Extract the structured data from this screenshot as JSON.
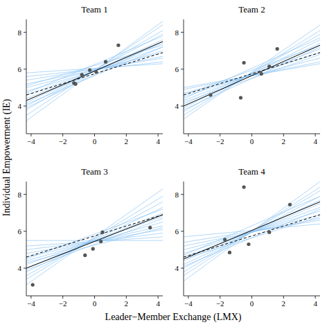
{
  "chart_data": [
    {
      "type": "line",
      "title": "Team 1",
      "x_label": "Leader−Member Exchange (LMX)",
      "y_label": "Individual Empowerment (IE)",
      "xlim": [
        -4.3,
        4.3
      ],
      "ylim": [
        2.5,
        8.7
      ],
      "xticks": [
        -4,
        -2,
        0,
        2,
        4
      ],
      "yticks": [
        4,
        6,
        8
      ],
      "x": [
        -4.3,
        4.3
      ],
      "series": [
        {
          "color": "#8fc6f5",
          "values": [
            3.2,
            8.6
          ]
        },
        {
          "color": "#8fc6f5",
          "values": [
            3.5,
            8.4
          ]
        },
        {
          "color": "#8fc6f5",
          "values": [
            3.8,
            8.1
          ]
        },
        {
          "color": "#8fc6f5",
          "values": [
            4.0,
            7.9
          ]
        },
        {
          "color": "#8fc6f5",
          "values": [
            4.2,
            7.6
          ]
        },
        {
          "color": "#8fc6f5",
          "values": [
            4.4,
            7.4
          ]
        },
        {
          "color": "#8fc6f5",
          "values": [
            4.6,
            7.2
          ]
        },
        {
          "color": "#8fc6f5",
          "values": [
            4.8,
            7.0
          ]
        },
        {
          "color": "#8fc6f5",
          "values": [
            5.0,
            6.9
          ]
        },
        {
          "color": "#8fc6f5",
          "values": [
            5.2,
            6.7
          ]
        },
        {
          "color": "#8fc6f5",
          "values": [
            5.4,
            6.6
          ]
        },
        {
          "color": "#8fc6f5",
          "values": [
            5.6,
            6.4
          ]
        },
        {
          "color": "#8fc6f5",
          "values": [
            5.8,
            6.3
          ]
        },
        {
          "color": "#8fc6f5",
          "values": [
            4.1,
            7.2
          ]
        },
        {
          "color": "#8fc6f5",
          "values": [
            4.7,
            7.8
          ]
        },
        {
          "color": "#8fc6f5",
          "values": [
            3.9,
            7.5
          ]
        },
        {
          "color": "#8fc6f5",
          "values": [
            5.1,
            7.3
          ]
        },
        {
          "color": "#000000",
          "line_style": "solid",
          "values": [
            4.3,
            7.5
          ]
        },
        {
          "color": "#000000",
          "line_style": "dashed",
          "values": [
            4.6,
            6.9
          ]
        },
        {
          "type": "scatter",
          "marker": "circle",
          "color": "#555555",
          "x": [
            -1.3,
            -1.2,
            -0.8,
            -0.3,
            0.1,
            0.7,
            1.5
          ],
          "values": [
            5.25,
            5.2,
            5.7,
            5.95,
            5.85,
            6.4,
            7.3
          ]
        }
      ]
    },
    {
      "type": "line",
      "title": "Team 2",
      "xlim": [
        -4.3,
        4.3
      ],
      "ylim": [
        2.5,
        8.7
      ],
      "xticks": [
        -4,
        -2,
        0,
        2,
        4
      ],
      "yticks": [
        4,
        6,
        8
      ],
      "x": [
        -4.3,
        4.3
      ],
      "series": [
        {
          "color": "#8fc6f5",
          "values": [
            3.3,
            8.4
          ]
        },
        {
          "color": "#8fc6f5",
          "values": [
            3.5,
            8.1
          ]
        },
        {
          "color": "#8fc6f5",
          "values": [
            3.7,
            7.9
          ]
        },
        {
          "color": "#8fc6f5",
          "values": [
            3.9,
            7.6
          ]
        },
        {
          "color": "#8fc6f5",
          "values": [
            4.1,
            7.4
          ]
        },
        {
          "color": "#8fc6f5",
          "values": [
            4.3,
            7.1
          ]
        },
        {
          "color": "#8fc6f5",
          "values": [
            4.5,
            6.9
          ]
        },
        {
          "color": "#8fc6f5",
          "values": [
            4.7,
            6.6
          ]
        },
        {
          "color": "#8fc6f5",
          "values": [
            4.9,
            6.4
          ]
        },
        {
          "color": "#8fc6f5",
          "values": [
            5.0,
            6.3
          ]
        },
        {
          "color": "#8fc6f5",
          "values": [
            3.8,
            7.2
          ]
        },
        {
          "color": "#8fc6f5",
          "values": [
            4.4,
            7.7
          ]
        },
        {
          "color": "#8fc6f5",
          "values": [
            4.2,
            6.8
          ]
        },
        {
          "color": "#8fc6f5",
          "values": [
            4.6,
            7.3
          ]
        },
        {
          "color": "#000000",
          "line_style": "solid",
          "values": [
            4.0,
            7.3
          ]
        },
        {
          "color": "#000000",
          "line_style": "dashed",
          "values": [
            4.6,
            6.9
          ]
        },
        {
          "type": "scatter",
          "marker": "circle",
          "color": "#555555",
          "x": [
            -2.6,
            -0.7,
            -0.5,
            0.6,
            1.1,
            1.6
          ],
          "values": [
            4.6,
            4.45,
            6.35,
            5.75,
            6.15,
            7.1
          ]
        }
      ]
    },
    {
      "type": "line",
      "title": "Team 3",
      "xlim": [
        -4.3,
        4.3
      ],
      "ylim": [
        2.5,
        8.7
      ],
      "xticks": [
        -4,
        -2,
        0,
        2,
        4
      ],
      "yticks": [
        4,
        6,
        8
      ],
      "x": [
        -4.3,
        4.3
      ],
      "series": [
        {
          "color": "#8fc6f5",
          "values": [
            3.1,
            8.3
          ]
        },
        {
          "color": "#8fc6f5",
          "values": [
            3.4,
            7.9
          ]
        },
        {
          "color": "#8fc6f5",
          "values": [
            3.6,
            7.6
          ]
        },
        {
          "color": "#8fc6f5",
          "values": [
            3.8,
            7.3
          ]
        },
        {
          "color": "#8fc6f5",
          "values": [
            4.0,
            7.0
          ]
        },
        {
          "color": "#8fc6f5",
          "values": [
            4.2,
            6.8
          ]
        },
        {
          "color": "#8fc6f5",
          "values": [
            4.4,
            6.5
          ]
        },
        {
          "color": "#8fc6f5",
          "values": [
            4.6,
            6.3
          ]
        },
        {
          "color": "#8fc6f5",
          "values": [
            4.8,
            6.1
          ]
        },
        {
          "color": "#8fc6f5",
          "values": [
            5.0,
            5.9
          ]
        },
        {
          "color": "#8fc6f5",
          "values": [
            5.2,
            5.7
          ]
        },
        {
          "color": "#8fc6f5",
          "values": [
            5.5,
            5.5
          ]
        },
        {
          "color": "#8fc6f5",
          "values": [
            3.9,
            6.7
          ]
        },
        {
          "color": "#8fc6f5",
          "values": [
            4.5,
            7.2
          ]
        },
        {
          "color": "#8fc6f5",
          "values": [
            4.3,
            6.2
          ]
        },
        {
          "color": "#000000",
          "line_style": "solid",
          "values": [
            4.0,
            6.9
          ]
        },
        {
          "color": "#000000",
          "line_style": "dashed",
          "values": [
            4.6,
            6.9
          ]
        },
        {
          "type": "scatter",
          "marker": "circle",
          "color": "#555555",
          "x": [
            -3.9,
            -0.6,
            -0.1,
            0.4,
            0.5,
            3.5
          ],
          "values": [
            3.1,
            4.7,
            5.05,
            5.45,
            5.95,
            6.2
          ]
        }
      ]
    },
    {
      "type": "line",
      "title": "Team 4",
      "xlim": [
        -4.3,
        4.3
      ],
      "ylim": [
        2.5,
        8.7
      ],
      "xticks": [
        -4,
        -2,
        0,
        2,
        4
      ],
      "yticks": [
        4,
        6,
        8
      ],
      "x": [
        -4.3,
        4.3
      ],
      "series": [
        {
          "color": "#8fc6f5",
          "values": [
            3.3,
            8.7
          ]
        },
        {
          "color": "#8fc6f5",
          "values": [
            3.6,
            8.4
          ]
        },
        {
          "color": "#8fc6f5",
          "values": [
            3.8,
            8.2
          ]
        },
        {
          "color": "#8fc6f5",
          "values": [
            4.0,
            7.9
          ]
        },
        {
          "color": "#8fc6f5",
          "values": [
            4.2,
            7.7
          ]
        },
        {
          "color": "#8fc6f5",
          "values": [
            4.4,
            7.5
          ]
        },
        {
          "color": "#8fc6f5",
          "values": [
            4.6,
            7.3
          ]
        },
        {
          "color": "#8fc6f5",
          "values": [
            4.8,
            7.1
          ]
        },
        {
          "color": "#8fc6f5",
          "values": [
            5.0,
            6.9
          ]
        },
        {
          "color": "#8fc6f5",
          "values": [
            5.2,
            6.7
          ]
        },
        {
          "color": "#8fc6f5",
          "values": [
            5.4,
            6.6
          ]
        },
        {
          "color": "#8fc6f5",
          "values": [
            5.7,
            6.4
          ]
        },
        {
          "color": "#8fc6f5",
          "values": [
            4.1,
            7.2
          ]
        },
        {
          "color": "#8fc6f5",
          "values": [
            4.7,
            7.9
          ]
        },
        {
          "color": "#8fc6f5",
          "values": [
            4.5,
            6.8
          ]
        },
        {
          "color": "#000000",
          "line_style": "solid",
          "values": [
            4.5,
            7.6
          ]
        },
        {
          "color": "#000000",
          "line_style": "dashed",
          "values": [
            4.6,
            6.9
          ]
        },
        {
          "type": "scatter",
          "marker": "circle",
          "color": "#555555",
          "x": [
            -1.7,
            -1.4,
            -0.5,
            -0.2,
            1.1,
            2.4
          ],
          "values": [
            5.55,
            4.85,
            8.4,
            5.3,
            5.95,
            7.45
          ]
        }
      ]
    }
  ]
}
